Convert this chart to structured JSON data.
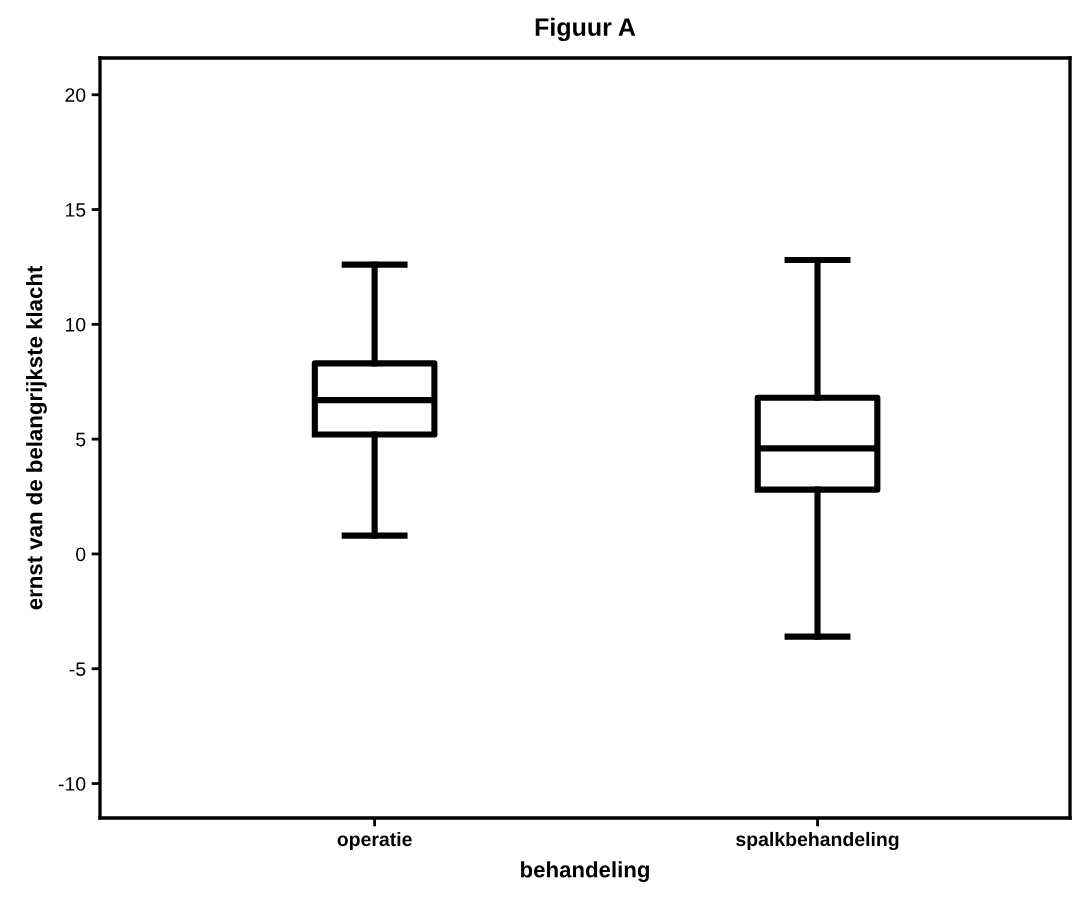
{
  "chart_data": {
    "type": "box",
    "title": "Figuur A",
    "xlabel": "behandeling",
    "ylabel": "ernst van de belangrijkste klacht",
    "categories": [
      "operatie",
      "spalkbehandeling"
    ],
    "boxes": [
      {
        "low": 0.8,
        "q1": 5.2,
        "median": 6.7,
        "q3": 8.3,
        "high": 12.6
      },
      {
        "low": -3.6,
        "q1": 2.8,
        "median": 4.6,
        "q3": 6.8,
        "high": 12.8
      }
    ],
    "ylim": [
      -11.5,
      21.6
    ],
    "yticks": [
      -10,
      -5,
      0,
      5,
      10,
      15,
      20
    ],
    "grid": false
  }
}
